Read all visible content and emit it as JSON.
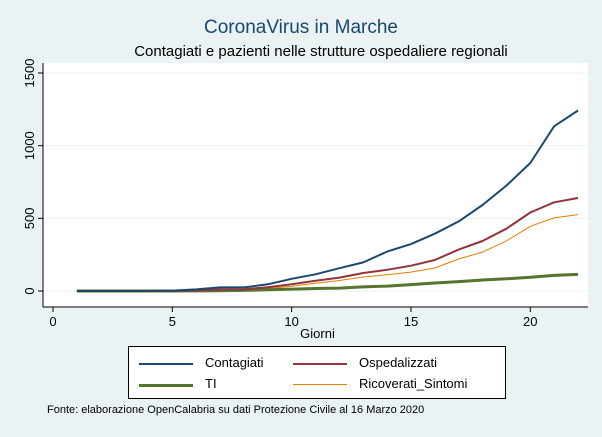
{
  "note": "Fonte: elaborazione OpenCalabria su dati Protezione Civile al 16 Marzo 2020",
  "chart_data": {
    "type": "line",
    "title": "CoronaVirus in Marche",
    "subtitle": "Contagiati e pazienti nelle strutture ospedaliere regionali",
    "xlabel": "Giorni",
    "ylabel": "",
    "xlim": [
      0,
      22
    ],
    "ylim": [
      0,
      1500
    ],
    "xticks": [
      0,
      5,
      10,
      15,
      20
    ],
    "yticks": [
      0,
      500,
      1000,
      1500
    ],
    "grid": true,
    "legend_position": "bottom",
    "x": [
      1,
      2,
      3,
      4,
      5,
      6,
      7,
      8,
      9,
      10,
      11,
      12,
      13,
      14,
      15,
      16,
      17,
      18,
      19,
      20,
      21,
      22
    ],
    "series": [
      {
        "name": "Contagiati",
        "color": "#1a476f",
        "width": 2,
        "values": [
          0,
          0,
          0,
          1,
          3,
          11,
          25,
          25,
          46,
          84,
          115,
          157,
          197,
          271,
          323,
          394,
          479,
          592,
          725,
          881,
          1133,
          1242
        ]
      },
      {
        "name": "Ospedalizzati",
        "color": "#90353b",
        "width": 2,
        "values": [
          0,
          0,
          0,
          0,
          1,
          4,
          10,
          12,
          26,
          46,
          70,
          92,
          124,
          146,
          174,
          213,
          285,
          344,
          429,
          540,
          610,
          640
        ]
      },
      {
        "name": "TI",
        "color": "#55752f",
        "width": 3,
        "values": [
          0,
          0,
          0,
          0,
          0,
          1,
          2,
          4,
          9,
          13,
          17,
          20,
          28,
          34,
          44,
          55,
          65,
          76,
          84,
          95,
          107,
          114
        ]
      },
      {
        "name": "Ricoverati_Sintomi",
        "color": "#e37e00",
        "width": 1,
        "values": [
          0,
          0,
          0,
          0,
          1,
          3,
          8,
          8,
          17,
          33,
          53,
          72,
          96,
          112,
          130,
          158,
          220,
          268,
          345,
          445,
          503,
          526
        ]
      }
    ]
  }
}
